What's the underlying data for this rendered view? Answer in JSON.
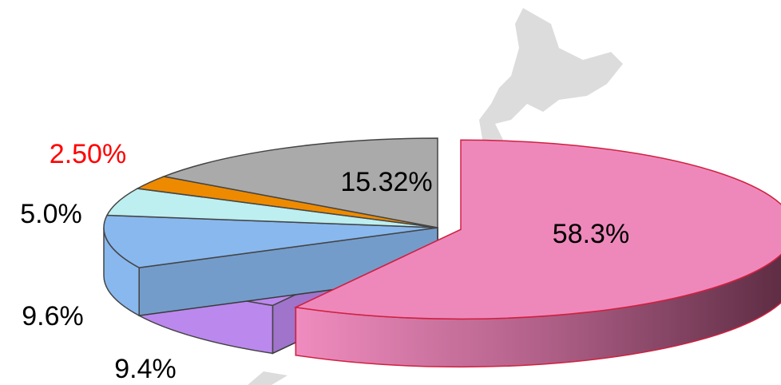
{
  "chart_data": {
    "type": "pie",
    "values": [
      58.3,
      9.4,
      9.6,
      5.0,
      2.5,
      15.32
    ],
    "value_labels": [
      "58.3%",
      "9.4%",
      "9.6%",
      "5.0%",
      "2.50%",
      "15.32%"
    ],
    "colors": [
      "#ee88bb",
      "#bb88ee",
      "#88b8ee",
      "#bdeef0",
      "#ee8a00",
      "#aaaaaa"
    ],
    "label_colors": [
      "#000000",
      "#000000",
      "#000000",
      "#000000",
      "#ff0000",
      "#000000"
    ]
  }
}
